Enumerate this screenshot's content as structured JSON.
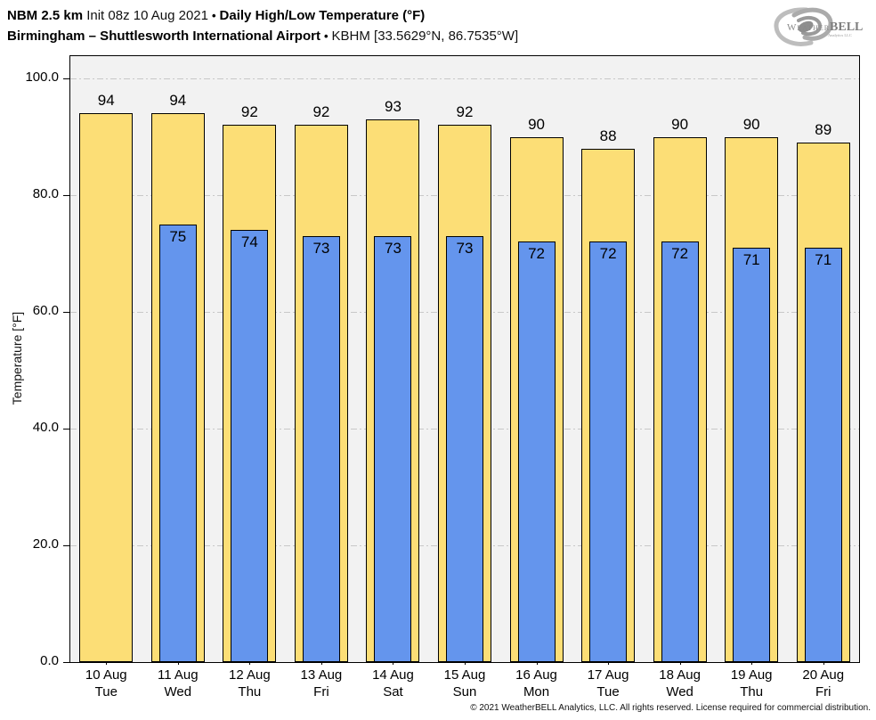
{
  "header": {
    "model": "NBM 2.5 km",
    "init": "Init 08z 10 Aug 2021",
    "sep": "•",
    "product": "Daily High/Low Temperature (°F)",
    "station_name": "Birmingham – Shuttlesworth International Airport",
    "station_meta": "KBHM [33.5629°N, 86.7535°W]"
  },
  "logo": {
    "brand_weather": "Weather",
    "brand_bell": "BELL",
    "brand_sub": "Analytics LLC"
  },
  "footer": {
    "copyright": "© 2021 WeatherBELL Analytics, LLC. All rights reserved. License required for commercial distribution."
  },
  "chart_data": {
    "type": "bar",
    "title": "NBM 2.5 km Init 08z 10 Aug 2021 — Daily High/Low Temperature (°F)",
    "subtitle": "Birmingham – Shuttlesworth International Airport — KBHM [33.5629°N, 86.7535°W]",
    "xlabel": "",
    "ylabel": "Temperature [°F]",
    "ylim": [
      0,
      104
    ],
    "ytick_labels": [
      "0.0",
      "20.0",
      "40.0",
      "60.0",
      "80.0",
      "100.0"
    ],
    "ytick_values": [
      0,
      20,
      40,
      60,
      80,
      100
    ],
    "grid": "horizontal dash-dot",
    "legend": "none",
    "plot_bg": "#f2f2f2",
    "categories": [
      "10 Aug",
      "11 Aug",
      "12 Aug",
      "13 Aug",
      "14 Aug",
      "15 Aug",
      "16 Aug",
      "17 Aug",
      "18 Aug",
      "19 Aug",
      "20 Aug"
    ],
    "day_labels": [
      "Tue",
      "Wed",
      "Thu",
      "Fri",
      "Sat",
      "Sun",
      "Mon",
      "Tue",
      "Wed",
      "Thu",
      "Fri"
    ],
    "series": [
      {
        "name": "Daily High",
        "color": "#FCDE76",
        "values": [
          94,
          94,
          92,
          92,
          93,
          92,
          90,
          88,
          90,
          90,
          89
        ]
      },
      {
        "name": "Daily Low",
        "color": "#6495ED",
        "values": [
          null,
          75,
          74,
          73,
          73,
          73,
          72,
          72,
          72,
          71,
          71
        ]
      }
    ]
  }
}
